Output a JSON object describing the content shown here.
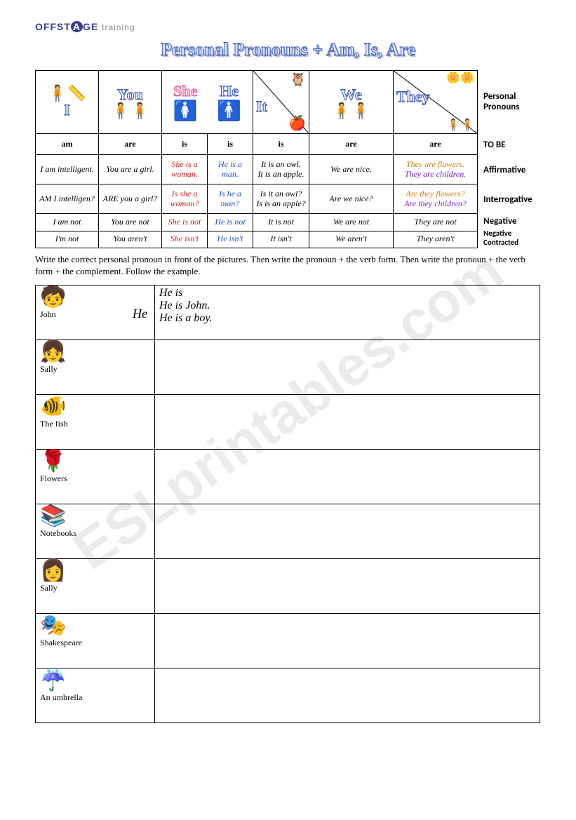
{
  "logo": {
    "brand_a": "OFFST",
    "brand_r": "A",
    "brand_b": "GE",
    "sub": "training"
  },
  "title": "Personal Pronouns + Am, Is, Are",
  "side_labels": {
    "pronouns": "Personal Pronouns",
    "tobe": "TO BE",
    "affirmative": "Affirmative",
    "interrogative": "Interrogative",
    "negative": "Negative",
    "negcontr": "Negative Contracted"
  },
  "header_pronouns": {
    "i": "I",
    "you": "You",
    "she": "She",
    "he": "He",
    "it": "It",
    "we": "We",
    "they": "They"
  },
  "tobe_row": [
    "am",
    "are",
    "is",
    "is",
    "is",
    "are",
    "are"
  ],
  "affirmative": {
    "i": "I am intelligent.",
    "you": "You are a girl.",
    "she": "She is a woman.",
    "he": "He is a man.",
    "it1": "It is an owl.",
    "it2": "It is an apple.",
    "we": "We are nice.",
    "they1": "They are flowers.",
    "they2": "They are children."
  },
  "interrogative": {
    "i": "AM I intelligen?",
    "you": "ARE you a girl?",
    "she": "Is she a woman?",
    "he": "Is he a man?",
    "it1": "Is it an owl?",
    "it2": "Is is an apple?",
    "we": "Are we nice?",
    "they1": "Are they flowers?",
    "they2": "Are they children?"
  },
  "negative": {
    "i": "I am not",
    "you": "You are not",
    "she": "She is not",
    "he": "He is not",
    "it": "It is not",
    "we": "We are not",
    "they": "They are not"
  },
  "negcontr": {
    "i": "I'm not",
    "you": "You aren't",
    "she": "She isn't",
    "he": "He isn't",
    "it": "It isn't",
    "we": "We aren't",
    "they": "They aren't"
  },
  "instructions": "Write the correct personal pronoun in front of the pictures. Then write the pronoun + the verb form. Then write the pronoun + the verb form + the complement. Follow the example.",
  "exercise": {
    "rows": [
      {
        "icon": "boy",
        "label": "John",
        "pronoun": "He",
        "ans1": "He is",
        "ans2": "He is John.",
        "ans3": "He is a boy."
      },
      {
        "icon": "girl",
        "label": "Sally",
        "pronoun": "",
        "ans1": "",
        "ans2": "",
        "ans3": ""
      },
      {
        "icon": "fish",
        "label": "The fish",
        "pronoun": "",
        "ans1": "",
        "ans2": "",
        "ans3": ""
      },
      {
        "icon": "flowers",
        "label": "Flowers",
        "pronoun": "",
        "ans1": "",
        "ans2": "",
        "ans3": ""
      },
      {
        "icon": "notebooks",
        "label": "Notebooks",
        "pronoun": "",
        "ans1": "",
        "ans2": "",
        "ans3": ""
      },
      {
        "icon": "woman",
        "label": "Sally",
        "pronoun": "",
        "ans1": "",
        "ans2": "",
        "ans3": ""
      },
      {
        "icon": "shakespeare",
        "label": "Shakespeare",
        "pronoun": "",
        "ans1": "",
        "ans2": "",
        "ans3": ""
      },
      {
        "icon": "umbrella",
        "label": "An umbrella",
        "pronoun": "",
        "ans1": "",
        "ans2": "",
        "ans3": ""
      }
    ]
  },
  "icons": {
    "boy": "🧒",
    "girl": "👧",
    "fish": "🐠",
    "flowers": "🌹",
    "notebooks": "📚",
    "woman": "👩",
    "shakespeare": "🎭",
    "umbrella": "☔",
    "owl": "🦉",
    "apple": "🍎",
    "daisy": "🌼",
    "stick1": "🧍",
    "stick2": "🧍🧍",
    "female": "🚺",
    "male": "🚹"
  },
  "watermark": "ESLprintables.com",
  "colors": {
    "title_stroke": "#3b56b5",
    "title_fill": "#dbe5f8",
    "red": "#c81e1e",
    "blue": "#1e4ec8",
    "purple": "#7a1ec8",
    "orange": "#cc7a00",
    "border": "#000000",
    "background": "#ffffff",
    "logo": "#3b3b8f",
    "watermark": "rgba(0,0,0,0.08)"
  }
}
